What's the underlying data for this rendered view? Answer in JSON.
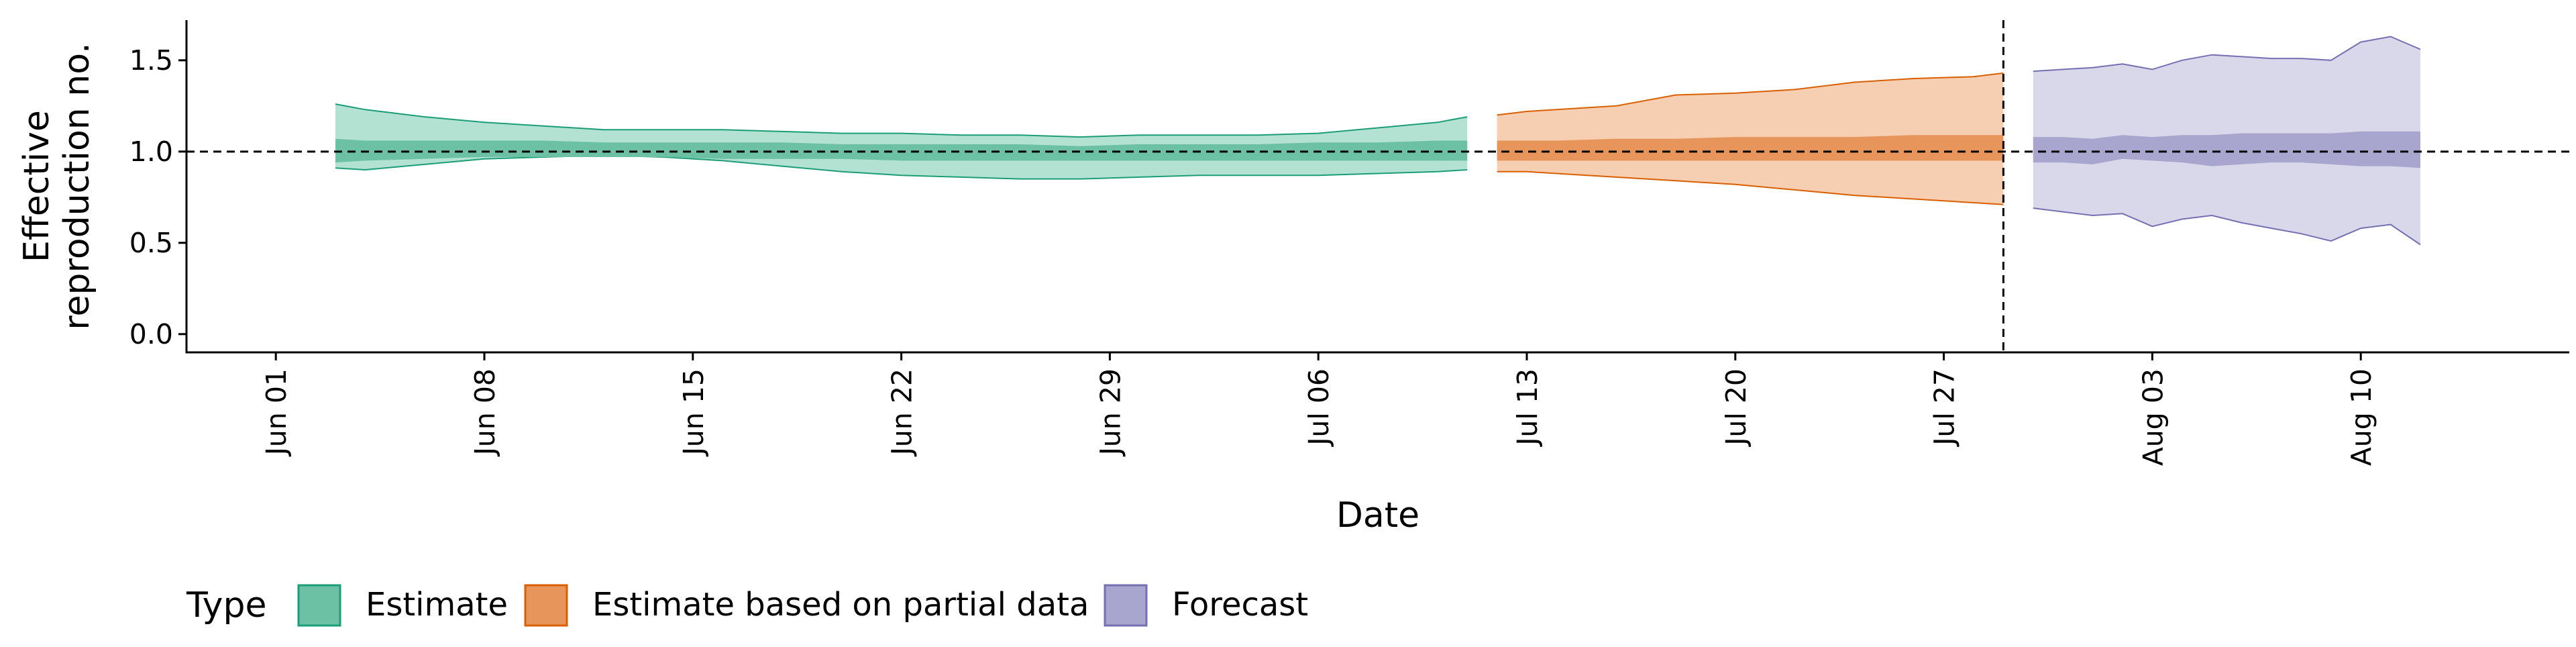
{
  "chart_data": {
    "type": "area",
    "ylabel_lines": [
      "Effective",
      "reproduction no."
    ],
    "xlabel": "Date",
    "ylim": [
      -0.1,
      1.72
    ],
    "yticks": [
      0.0,
      0.5,
      1.0,
      1.5
    ],
    "ytick_labels": [
      "0.0",
      "0.5",
      "1.0",
      "1.5"
    ],
    "xlim": [
      "2020-05-29",
      "2020-08-17"
    ],
    "xticks": [
      "2020-06-01",
      "2020-06-08",
      "2020-06-15",
      "2020-06-22",
      "2020-06-29",
      "2020-07-06",
      "2020-07-13",
      "2020-07-20",
      "2020-07-27",
      "2020-08-03",
      "2020-08-10"
    ],
    "xtick_labels": [
      "Jun 01",
      "Jun 08",
      "Jun 15",
      "Jun 22",
      "Jun 29",
      "Jul 06",
      "Jul 13",
      "Jul 20",
      "Jul 27",
      "Aug 03",
      "Aug 10"
    ],
    "reference_hline": 1.0,
    "reference_vline": "2020-07-29",
    "grid": false,
    "legend": {
      "title": "Type",
      "position": "bottom",
      "entries": [
        "Estimate",
        "Estimate based on partial data",
        "Forecast"
      ]
    },
    "colors": {
      "Estimate": {
        "outer": "#b3e2d3",
        "inner": "#6cc0a4",
        "stroke": "#1b9e77"
      },
      "Estimate based on partial data": {
        "outer": "#f6cfb2",
        "inner": "#e8955c",
        "stroke": "#d95f02"
      },
      "Forecast": {
        "outer": "#d9d8ea",
        "inner": "#a8a5cf",
        "stroke": "#7570b3"
      }
    },
    "series": [
      {
        "name": "Estimate",
        "x": [
          "2020-06-03",
          "2020-06-04",
          "2020-06-06",
          "2020-06-08",
          "2020-06-10",
          "2020-06-12",
          "2020-06-14",
          "2020-06-16",
          "2020-06-18",
          "2020-06-20",
          "2020-06-22",
          "2020-06-24",
          "2020-06-26",
          "2020-06-28",
          "2020-06-30",
          "2020-07-02",
          "2020-07-04",
          "2020-07-06",
          "2020-07-08",
          "2020-07-10",
          "2020-07-11"
        ],
        "upper90": [
          1.26,
          1.23,
          1.19,
          1.16,
          1.14,
          1.12,
          1.12,
          1.12,
          1.11,
          1.1,
          1.1,
          1.09,
          1.09,
          1.08,
          1.09,
          1.09,
          1.09,
          1.1,
          1.13,
          1.16,
          1.19
        ],
        "upper50": [
          1.07,
          1.06,
          1.06,
          1.06,
          1.06,
          1.05,
          1.05,
          1.05,
          1.05,
          1.04,
          1.04,
          1.04,
          1.04,
          1.03,
          1.04,
          1.04,
          1.04,
          1.05,
          1.05,
          1.06,
          1.06
        ],
        "lower50": [
          0.94,
          0.95,
          0.96,
          0.97,
          0.97,
          0.97,
          0.97,
          0.96,
          0.96,
          0.96,
          0.95,
          0.95,
          0.95,
          0.95,
          0.95,
          0.95,
          0.95,
          0.95,
          0.95,
          0.95,
          0.95
        ],
        "lower90": [
          0.91,
          0.9,
          0.93,
          0.96,
          0.97,
          0.98,
          0.97,
          0.95,
          0.92,
          0.89,
          0.87,
          0.86,
          0.85,
          0.85,
          0.86,
          0.87,
          0.87,
          0.87,
          0.88,
          0.89,
          0.9
        ]
      },
      {
        "name": "Estimate based on partial data",
        "x": [
          "2020-07-12",
          "2020-07-13",
          "2020-07-14",
          "2020-07-16",
          "2020-07-18",
          "2020-07-20",
          "2020-07-22",
          "2020-07-24",
          "2020-07-26",
          "2020-07-28",
          "2020-07-29"
        ],
        "upper90": [
          1.2,
          1.22,
          1.23,
          1.25,
          1.31,
          1.32,
          1.34,
          1.38,
          1.4,
          1.41,
          1.43
        ],
        "upper50": [
          1.06,
          1.06,
          1.06,
          1.07,
          1.07,
          1.08,
          1.08,
          1.08,
          1.09,
          1.09,
          1.09
        ],
        "lower50": [
          0.95,
          0.95,
          0.95,
          0.95,
          0.95,
          0.95,
          0.95,
          0.95,
          0.95,
          0.95,
          0.95
        ],
        "lower90": [
          0.89,
          0.89,
          0.88,
          0.86,
          0.84,
          0.82,
          0.79,
          0.76,
          0.74,
          0.72,
          0.71
        ]
      },
      {
        "name": "Forecast",
        "x": [
          "2020-07-30",
          "2020-07-31",
          "2020-08-01",
          "2020-08-02",
          "2020-08-03",
          "2020-08-04",
          "2020-08-05",
          "2020-08-06",
          "2020-08-07",
          "2020-08-08",
          "2020-08-09",
          "2020-08-10",
          "2020-08-11",
          "2020-08-12"
        ],
        "upper90": [
          1.44,
          1.45,
          1.46,
          1.48,
          1.45,
          1.5,
          1.53,
          1.52,
          1.51,
          1.51,
          1.5,
          1.6,
          1.63,
          1.56
        ],
        "upper50": [
          1.08,
          1.08,
          1.07,
          1.09,
          1.08,
          1.09,
          1.09,
          1.1,
          1.1,
          1.1,
          1.1,
          1.11,
          1.11,
          1.11
        ],
        "lower50": [
          0.94,
          0.94,
          0.93,
          0.96,
          0.95,
          0.94,
          0.92,
          0.93,
          0.94,
          0.94,
          0.93,
          0.92,
          0.92,
          0.91
        ],
        "lower90": [
          0.69,
          0.67,
          0.65,
          0.66,
          0.59,
          0.63,
          0.65,
          0.61,
          0.58,
          0.55,
          0.51,
          0.58,
          0.6,
          0.49
        ]
      }
    ]
  }
}
